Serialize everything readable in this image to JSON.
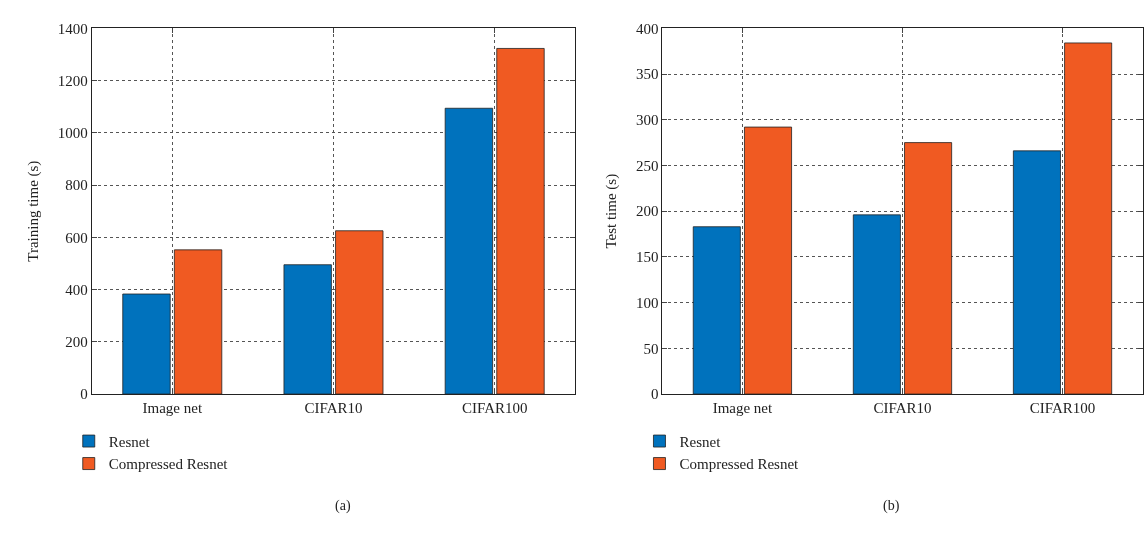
{
  "chart_data": [
    {
      "type": "bar",
      "ylabel": "Training time (s)",
      "categories": [
        "Image net",
        "CIFAR10",
        "CIFAR100"
      ],
      "series": [
        {
          "name": "Resnet",
          "color": "#0072bd",
          "values": [
            383,
            495,
            1094
          ]
        },
        {
          "name": "Compressed Resnet",
          "color": "#f05a22",
          "values": [
            552,
            625,
            1323
          ]
        }
      ],
      "ylim": [
        0,
        1400
      ],
      "yticks": [
        0,
        200,
        400,
        600,
        800,
        1000,
        1200,
        1400
      ],
      "grid": true,
      "legend": "bottom left",
      "annotations": [
        "(a)"
      ]
    },
    {
      "type": "bar",
      "ylabel": "Test time (s)",
      "categories": [
        "Image net",
        "CIFAR10",
        "CIFAR100"
      ],
      "series": [
        {
          "name": "Resnet",
          "color": "#0072bd",
          "values": [
            183,
            196,
            266
          ]
        },
        {
          "name": "Compressed Resnet",
          "color": "#f05a22",
          "values": [
            292,
            275,
            384
          ]
        }
      ],
      "ylim": [
        0,
        400
      ],
      "yticks": [
        0,
        50,
        100,
        150,
        200,
        250,
        300,
        350,
        400
      ],
      "grid": true,
      "legend": "bottom left",
      "annotations": [
        "(b)"
      ]
    }
  ]
}
